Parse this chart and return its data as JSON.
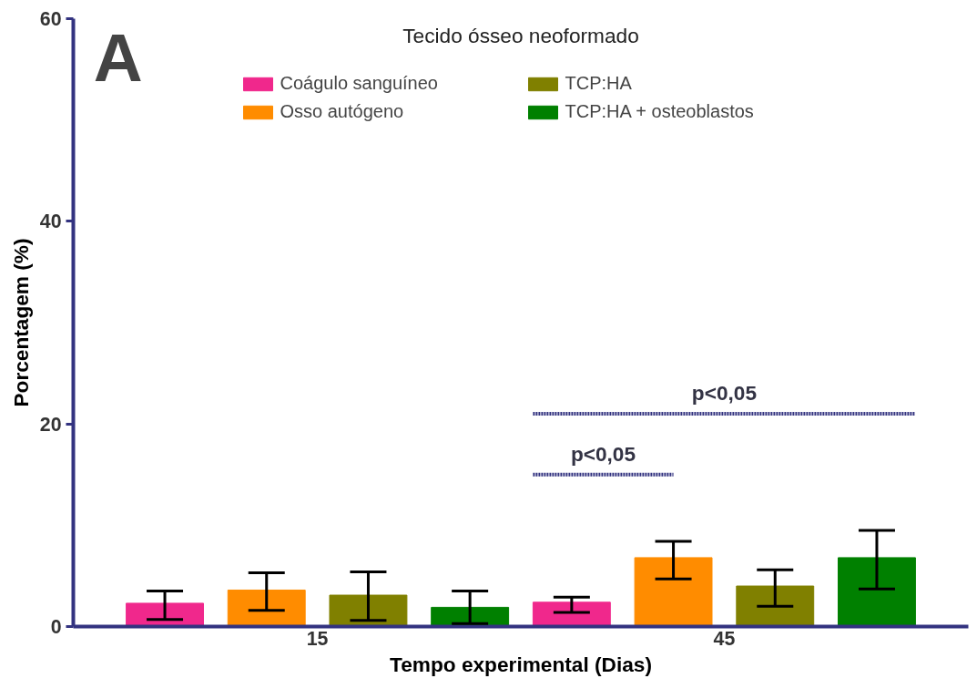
{
  "chart_data": {
    "type": "bar",
    "title": "Tecido ósseo neoformado",
    "xlabel": "Tempo experimental (Dias)",
    "ylabel": "Porcentagem (%)",
    "categories": [
      "15",
      "45"
    ],
    "series": [
      {
        "name": "Coágulo sanguíneo",
        "color": "#f0288c",
        "values": [
          2.3,
          2.4
        ],
        "errors": [
          [
            0.7,
            3.5
          ],
          [
            1.4,
            2.9
          ]
        ]
      },
      {
        "name": "Osso autógeno",
        "color": "#ff8c00",
        "values": [
          3.6,
          6.8
        ],
        "errors": [
          [
            1.6,
            5.3
          ],
          [
            4.7,
            8.4
          ]
        ]
      },
      {
        "name": "TCP:HA",
        "color": "#808000",
        "values": [
          3.1,
          4.0
        ],
        "errors": [
          [
            0.6,
            5.4
          ],
          [
            2.0,
            5.6
          ]
        ]
      },
      {
        "name": "TCP:HA + osteoblastos",
        "color": "#008000",
        "values": [
          1.9,
          6.8
        ],
        "errors": [
          [
            0.3,
            3.5
          ],
          [
            3.7,
            9.5
          ]
        ]
      }
    ],
    "ylim": [
      0,
      60
    ],
    "yticks": [
      0,
      20,
      40,
      60
    ],
    "grid": false,
    "legend": "top",
    "annotations": [
      "A",
      "p<0,05",
      "p<0,05"
    ]
  }
}
